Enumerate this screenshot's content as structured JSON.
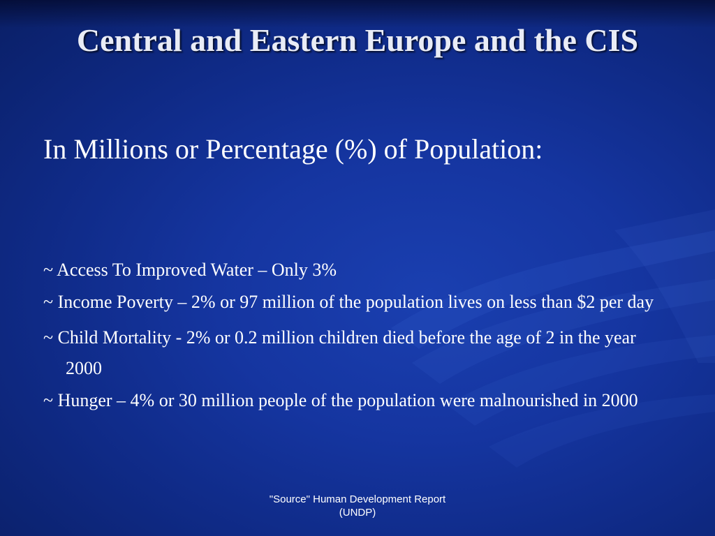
{
  "slide": {
    "title": "Central and Eastern Europe and the CIS",
    "subtitle": "In Millions or Percentage  (%) of Population:",
    "bullets": [
      "~ Access To Improved Water – Only 3%",
      "~ Income Poverty – 2% or 97 million of the population lives on less than $2 per day",
      "~ Child Mortality - 2% or 0.2 million children died before the age of 2 in the year 2000",
      "~ Hunger – 4% or 30 million people of the population were malnourished in 2000"
    ],
    "source_line1": "\"Source\" Human Development Report",
    "source_line2": "(UNDP)"
  },
  "colors": {
    "background": "#1535a0",
    "text": "#ffffff"
  }
}
